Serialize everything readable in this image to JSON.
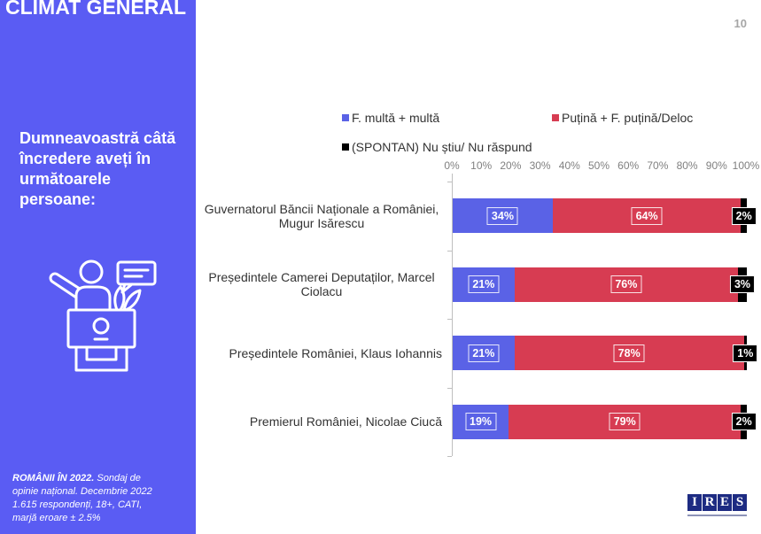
{
  "header": {
    "title": "CLIMAT GENERAL",
    "page_number": "10"
  },
  "question": {
    "lines": [
      "Dumneavoastră câtă",
      "încredere aveți în",
      "următoarele",
      "persoane:"
    ]
  },
  "source": {
    "lead": "ROMÂNII ÎN 2022.",
    "lines": [
      "Sondaj de",
      "opinie național. Decembrie 2022",
      "1.615 respondenți, 18+, CATI,",
      "marjă eroare ± 2.5%"
    ]
  },
  "icons": {
    "illustration": "speaker-at-podium-icon"
  },
  "colors": {
    "panel": "#5a5cf3",
    "panel_text": "#ffffff",
    "axis": "#bfbfbf",
    "tick_text": "#808080",
    "label_text": "#333333",
    "logo": "#1d2b82"
  },
  "logo": {
    "letters": [
      "I",
      "R",
      "E",
      "S"
    ]
  },
  "chart_data": {
    "type": "bar",
    "orientation": "horizontal",
    "stacked": true,
    "categories": [
      "Guvernatorul Băncii Naționale a României, Mugur Isărescu",
      "Președintele Camerei Deputaților, Marcel Ciolacu",
      "Președintele României, Klaus Iohannis",
      "Premierul României, Nicolae Ciucă"
    ],
    "series": [
      {
        "name": "F. multă + multă",
        "values": [
          34,
          21,
          21,
          19
        ],
        "labels": [
          "34%",
          "21%",
          "21%",
          "19%"
        ],
        "color": "#5a62e6"
      },
      {
        "name": "Puțină + F. puțină/Deloc",
        "values": [
          64,
          76,
          78,
          79
        ],
        "labels": [
          "64%",
          "76%",
          "78%",
          "79%"
        ],
        "color": "#d73c52"
      },
      {
        "name": "(SPONTAN) Nu știu/ Nu răspund",
        "values": [
          2,
          3,
          1,
          2
        ],
        "labels": [
          "2%",
          "3%",
          "1%",
          "2%"
        ],
        "color": "#000000"
      }
    ],
    "xlim": [
      0,
      100
    ],
    "xticks": [
      0,
      10,
      20,
      30,
      40,
      50,
      60,
      70,
      80,
      90,
      100
    ],
    "xtick_labels": [
      "0%",
      "10%",
      "20%",
      "30%",
      "40%",
      "50%",
      "60%",
      "70%",
      "80%",
      "90%",
      "100%"
    ],
    "xaxis_position": "top",
    "legend_position": "top",
    "grid": false
  }
}
